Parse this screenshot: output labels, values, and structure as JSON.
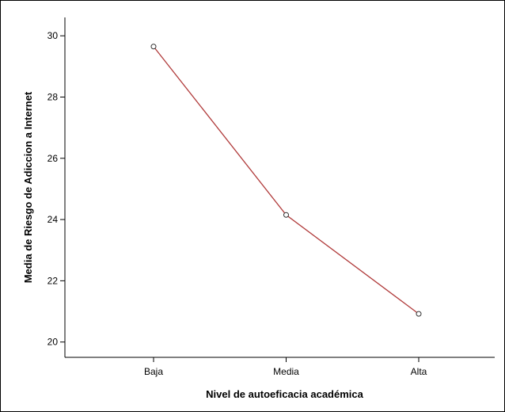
{
  "chart_data": {
    "type": "line",
    "categories": [
      "Baja",
      "Media",
      "Alta"
    ],
    "series": [
      {
        "values": [
          29.65,
          24.15,
          20.92
        ]
      }
    ],
    "xlabel": "Nivel de autoeficacia académica",
    "ylabel": "Media de Riesgo de Adiccion a Internet",
    "ylim": [
      19.5,
      30.6
    ],
    "yticks": [
      20,
      22,
      24,
      26,
      28,
      30
    ],
    "grid": false,
    "line_color": "#b03a3a",
    "marker_color": "#333333"
  }
}
